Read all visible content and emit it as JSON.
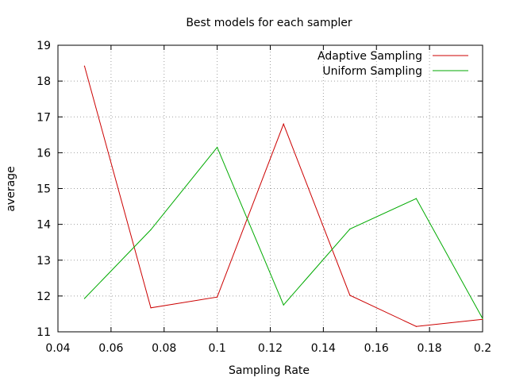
{
  "chart_data": {
    "type": "line",
    "title": "Best models for each sampler",
    "xlabel": "Sampling Rate",
    "ylabel": "average",
    "xlim": [
      0.04,
      0.2
    ],
    "ylim": [
      11,
      19
    ],
    "x_ticks": [
      0.04,
      0.06,
      0.08,
      0.1,
      0.12,
      0.14,
      0.16,
      0.18,
      0.2
    ],
    "x_tick_labels": [
      "0.04",
      "0.06",
      "0.08",
      "0.1",
      "0.12",
      "0.14",
      "0.16",
      "0.18",
      "0.2"
    ],
    "y_ticks": [
      11,
      12,
      13,
      14,
      15,
      16,
      17,
      18,
      19
    ],
    "y_tick_labels": [
      "11",
      "12",
      "13",
      "14",
      "15",
      "16",
      "17",
      "18",
      "19"
    ],
    "grid": true,
    "legend_position": "top-right",
    "series": [
      {
        "name": "Adaptive Sampling",
        "color": "#cc0000",
        "x": [
          0.05,
          0.075,
          0.1,
          0.125,
          0.15,
          0.175,
          0.2
        ],
        "y": [
          18.42,
          11.67,
          11.97,
          16.8,
          12.02,
          11.15,
          11.35
        ]
      },
      {
        "name": "Uniform Sampling",
        "color": "#00aa00",
        "x": [
          0.05,
          0.075,
          0.1,
          0.125,
          0.15,
          0.175,
          0.2
        ],
        "y": [
          11.93,
          13.85,
          16.15,
          11.75,
          13.87,
          14.72,
          11.37
        ]
      }
    ]
  }
}
